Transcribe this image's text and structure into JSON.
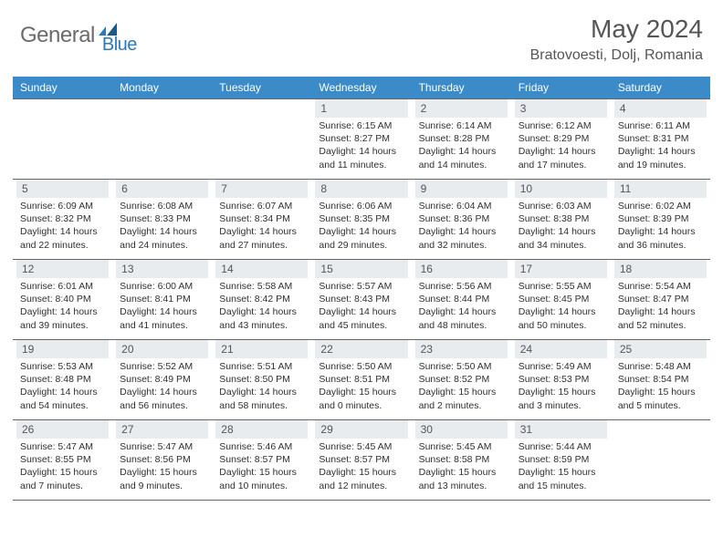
{
  "logo": {
    "text1": "General",
    "text2": "Blue",
    "color1": "#6b6b6b",
    "color2": "#2a7aba"
  },
  "title": "May 2024",
  "location": "Bratovoesti, Dolj, Romania",
  "colors": {
    "header_bg": "#3b8bc9",
    "header_text": "#ffffff",
    "daynum_bg": "#e9ecef",
    "daynum_text": "#555555",
    "info_text": "#303030",
    "border": "#666666"
  },
  "fonts": {
    "title_size": 28,
    "location_size": 16,
    "dayhead_size": 12,
    "daynum_size": 12,
    "info_size": 10.5
  },
  "day_headers": [
    "Sunday",
    "Monday",
    "Tuesday",
    "Wednesday",
    "Thursday",
    "Friday",
    "Saturday"
  ],
  "weeks": [
    [
      {
        "n": "",
        "sr": "",
        "ss": "",
        "dl": ""
      },
      {
        "n": "",
        "sr": "",
        "ss": "",
        "dl": ""
      },
      {
        "n": "",
        "sr": "",
        "ss": "",
        "dl": ""
      },
      {
        "n": "1",
        "sr": "Sunrise: 6:15 AM",
        "ss": "Sunset: 8:27 PM",
        "dl": "Daylight: 14 hours and 11 minutes."
      },
      {
        "n": "2",
        "sr": "Sunrise: 6:14 AM",
        "ss": "Sunset: 8:28 PM",
        "dl": "Daylight: 14 hours and 14 minutes."
      },
      {
        "n": "3",
        "sr": "Sunrise: 6:12 AM",
        "ss": "Sunset: 8:29 PM",
        "dl": "Daylight: 14 hours and 17 minutes."
      },
      {
        "n": "4",
        "sr": "Sunrise: 6:11 AM",
        "ss": "Sunset: 8:31 PM",
        "dl": "Daylight: 14 hours and 19 minutes."
      }
    ],
    [
      {
        "n": "5",
        "sr": "Sunrise: 6:09 AM",
        "ss": "Sunset: 8:32 PM",
        "dl": "Daylight: 14 hours and 22 minutes."
      },
      {
        "n": "6",
        "sr": "Sunrise: 6:08 AM",
        "ss": "Sunset: 8:33 PM",
        "dl": "Daylight: 14 hours and 24 minutes."
      },
      {
        "n": "7",
        "sr": "Sunrise: 6:07 AM",
        "ss": "Sunset: 8:34 PM",
        "dl": "Daylight: 14 hours and 27 minutes."
      },
      {
        "n": "8",
        "sr": "Sunrise: 6:06 AM",
        "ss": "Sunset: 8:35 PM",
        "dl": "Daylight: 14 hours and 29 minutes."
      },
      {
        "n": "9",
        "sr": "Sunrise: 6:04 AM",
        "ss": "Sunset: 8:36 PM",
        "dl": "Daylight: 14 hours and 32 minutes."
      },
      {
        "n": "10",
        "sr": "Sunrise: 6:03 AM",
        "ss": "Sunset: 8:38 PM",
        "dl": "Daylight: 14 hours and 34 minutes."
      },
      {
        "n": "11",
        "sr": "Sunrise: 6:02 AM",
        "ss": "Sunset: 8:39 PM",
        "dl": "Daylight: 14 hours and 36 minutes."
      }
    ],
    [
      {
        "n": "12",
        "sr": "Sunrise: 6:01 AM",
        "ss": "Sunset: 8:40 PM",
        "dl": "Daylight: 14 hours and 39 minutes."
      },
      {
        "n": "13",
        "sr": "Sunrise: 6:00 AM",
        "ss": "Sunset: 8:41 PM",
        "dl": "Daylight: 14 hours and 41 minutes."
      },
      {
        "n": "14",
        "sr": "Sunrise: 5:58 AM",
        "ss": "Sunset: 8:42 PM",
        "dl": "Daylight: 14 hours and 43 minutes."
      },
      {
        "n": "15",
        "sr": "Sunrise: 5:57 AM",
        "ss": "Sunset: 8:43 PM",
        "dl": "Daylight: 14 hours and 45 minutes."
      },
      {
        "n": "16",
        "sr": "Sunrise: 5:56 AM",
        "ss": "Sunset: 8:44 PM",
        "dl": "Daylight: 14 hours and 48 minutes."
      },
      {
        "n": "17",
        "sr": "Sunrise: 5:55 AM",
        "ss": "Sunset: 8:45 PM",
        "dl": "Daylight: 14 hours and 50 minutes."
      },
      {
        "n": "18",
        "sr": "Sunrise: 5:54 AM",
        "ss": "Sunset: 8:47 PM",
        "dl": "Daylight: 14 hours and 52 minutes."
      }
    ],
    [
      {
        "n": "19",
        "sr": "Sunrise: 5:53 AM",
        "ss": "Sunset: 8:48 PM",
        "dl": "Daylight: 14 hours and 54 minutes."
      },
      {
        "n": "20",
        "sr": "Sunrise: 5:52 AM",
        "ss": "Sunset: 8:49 PM",
        "dl": "Daylight: 14 hours and 56 minutes."
      },
      {
        "n": "21",
        "sr": "Sunrise: 5:51 AM",
        "ss": "Sunset: 8:50 PM",
        "dl": "Daylight: 14 hours and 58 minutes."
      },
      {
        "n": "22",
        "sr": "Sunrise: 5:50 AM",
        "ss": "Sunset: 8:51 PM",
        "dl": "Daylight: 15 hours and 0 minutes."
      },
      {
        "n": "23",
        "sr": "Sunrise: 5:50 AM",
        "ss": "Sunset: 8:52 PM",
        "dl": "Daylight: 15 hours and 2 minutes."
      },
      {
        "n": "24",
        "sr": "Sunrise: 5:49 AM",
        "ss": "Sunset: 8:53 PM",
        "dl": "Daylight: 15 hours and 3 minutes."
      },
      {
        "n": "25",
        "sr": "Sunrise: 5:48 AM",
        "ss": "Sunset: 8:54 PM",
        "dl": "Daylight: 15 hours and 5 minutes."
      }
    ],
    [
      {
        "n": "26",
        "sr": "Sunrise: 5:47 AM",
        "ss": "Sunset: 8:55 PM",
        "dl": "Daylight: 15 hours and 7 minutes."
      },
      {
        "n": "27",
        "sr": "Sunrise: 5:47 AM",
        "ss": "Sunset: 8:56 PM",
        "dl": "Daylight: 15 hours and 9 minutes."
      },
      {
        "n": "28",
        "sr": "Sunrise: 5:46 AM",
        "ss": "Sunset: 8:57 PM",
        "dl": "Daylight: 15 hours and 10 minutes."
      },
      {
        "n": "29",
        "sr": "Sunrise: 5:45 AM",
        "ss": "Sunset: 8:57 PM",
        "dl": "Daylight: 15 hours and 12 minutes."
      },
      {
        "n": "30",
        "sr": "Sunrise: 5:45 AM",
        "ss": "Sunset: 8:58 PM",
        "dl": "Daylight: 15 hours and 13 minutes."
      },
      {
        "n": "31",
        "sr": "Sunrise: 5:44 AM",
        "ss": "Sunset: 8:59 PM",
        "dl": "Daylight: 15 hours and 15 minutes."
      },
      {
        "n": "",
        "sr": "",
        "ss": "",
        "dl": ""
      }
    ]
  ]
}
